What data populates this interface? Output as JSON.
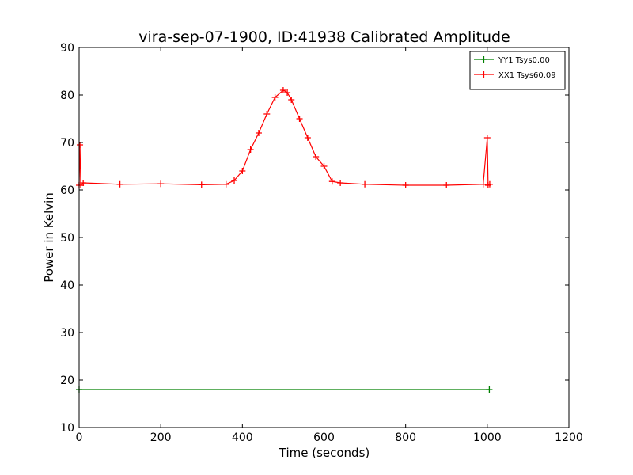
{
  "chart_data": {
    "type": "line",
    "title": "vira-sep-07-1900, ID:41938 Calibrated Amplitude",
    "xlabel": "Time (seconds)",
    "ylabel": "Power in Kelvin",
    "xlim": [
      0,
      1200
    ],
    "ylim": [
      10,
      90
    ],
    "xticks": [
      0,
      200,
      400,
      600,
      800,
      1000,
      1200
    ],
    "yticks": [
      10,
      20,
      30,
      40,
      50,
      60,
      70,
      80,
      90
    ],
    "grid": false,
    "legend_position": "top-right",
    "marker": "plus",
    "series": [
      {
        "name": "YY1 Tsys0.00",
        "color": "#008000",
        "x": [
          0,
          1005
        ],
        "y": [
          18,
          18
        ]
      },
      {
        "name": "XX1 Tsys60.09",
        "color": "#ff0000",
        "x": [
          0,
          2,
          4,
          10,
          100,
          200,
          300,
          360,
          380,
          400,
          420,
          440,
          460,
          480,
          500,
          510,
          520,
          540,
          560,
          580,
          600,
          620,
          640,
          700,
          800,
          900,
          990,
          1000,
          1002,
          1006
        ],
        "y": [
          61,
          69.5,
          61,
          61.5,
          61.2,
          61.3,
          61.1,
          61.2,
          62.0,
          64.0,
          68.5,
          72.0,
          76.0,
          79.5,
          81.0,
          80.5,
          79.0,
          75.0,
          71.0,
          67.0,
          65.0,
          61.8,
          61.5,
          61.2,
          61.0,
          61.0,
          61.2,
          71.0,
          61.0,
          61.2
        ]
      }
    ]
  }
}
